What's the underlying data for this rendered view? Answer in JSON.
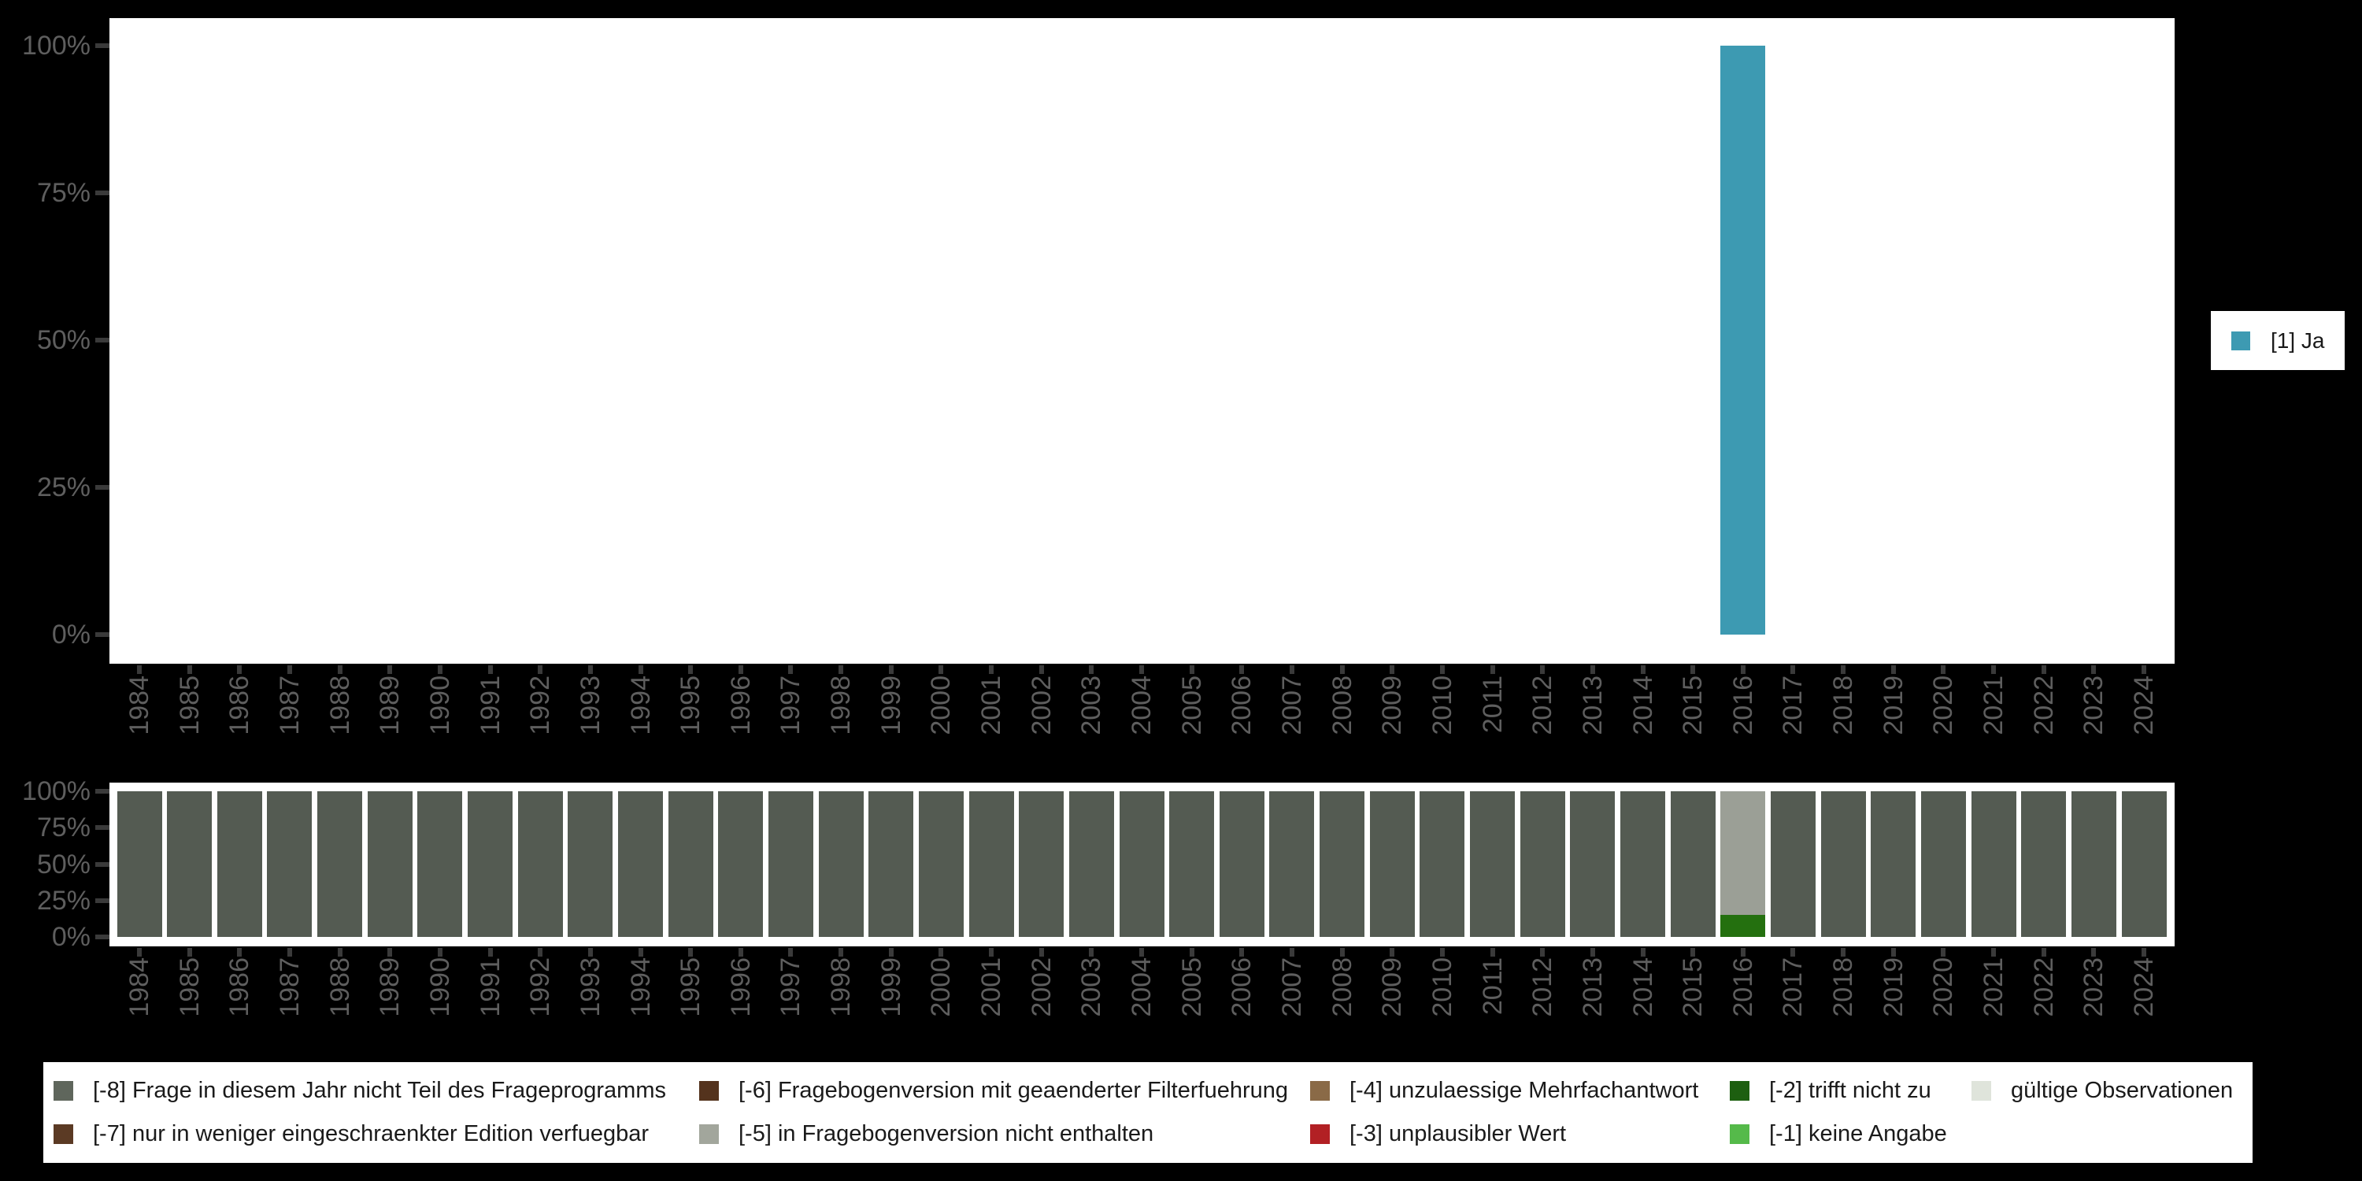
{
  "colors": {
    "background": "#000000",
    "plot_background": "#ffffff",
    "axis_label": "#5e5e5e",
    "tick_mark": "#3a3a3a",
    "legend_text": "#1a1a1a"
  },
  "top_legend": {
    "label": "[1] Ja",
    "color": "#3d9ab2"
  },
  "missing_legend": {
    "items": [
      {
        "code": "-8",
        "label": "[-8] Frage in diesem Jahr nicht Teil des Frageprogramms",
        "color": "#5f665c",
        "row": 1,
        "col": 1
      },
      {
        "code": "-7",
        "label": "[-7] nur in weniger eingeschraenkter Edition verfuegbar",
        "color": "#5b3a24",
        "row": 2,
        "col": 1
      },
      {
        "code": "-6",
        "label": "[-6] Fragebogenversion mit geaenderter Filterfuehrung",
        "color": "#54331d",
        "row": 1,
        "col": 2
      },
      {
        "code": "-5",
        "label": "[-5] in Fragebogenversion nicht enthalten",
        "color": "#a2a69c",
        "row": 2,
        "col": 2
      },
      {
        "code": "-4",
        "label": "[-4] unzulaessige Mehrfachantwort",
        "color": "#8a6a47",
        "row": 1,
        "col": 3
      },
      {
        "code": "-3",
        "label": "[-3] unplausibler Wert",
        "color": "#b22024",
        "row": 2,
        "col": 3
      },
      {
        "code": "-2",
        "label": "[-2] trifft nicht zu",
        "color": "#1d5f10",
        "row": 1,
        "col": 4
      },
      {
        "code": "-1",
        "label": "[-1] keine Angabe",
        "color": "#55ba4a",
        "row": 2,
        "col": 4
      },
      {
        "code": "valid",
        "label": "gültige Observationen",
        "color": "#dfe4db",
        "row": 1,
        "col": 5
      }
    ]
  },
  "chart_data": [
    {
      "type": "bar",
      "stacked": true,
      "unit": "percent",
      "title": "",
      "xlabel": "",
      "ylabel": "",
      "ylim": [
        0,
        100
      ],
      "yticks": [
        "0%",
        "25%",
        "50%",
        "75%",
        "100%"
      ],
      "grid": false,
      "legend_position": "right",
      "categories": [
        "1984",
        "1985",
        "1986",
        "1987",
        "1988",
        "1989",
        "1990",
        "1991",
        "1992",
        "1993",
        "1994",
        "1995",
        "1996",
        "1997",
        "1998",
        "1999",
        "2000",
        "2001",
        "2002",
        "2003",
        "2004",
        "2005",
        "2006",
        "2007",
        "2008",
        "2009",
        "2010",
        "2011",
        "2012",
        "2013",
        "2014",
        "2015",
        "2016",
        "2017",
        "2018",
        "2019",
        "2020",
        "2021",
        "2022",
        "2023",
        "2024"
      ],
      "series": [
        {
          "name": "[1] Ja",
          "color": "#3d9ab2",
          "values": [
            0,
            0,
            0,
            0,
            0,
            0,
            0,
            0,
            0,
            0,
            0,
            0,
            0,
            0,
            0,
            0,
            0,
            0,
            0,
            0,
            0,
            0,
            0,
            0,
            0,
            0,
            0,
            0,
            0,
            0,
            0,
            0,
            100,
            0,
            0,
            0,
            0,
            0,
            0,
            0,
            0
          ]
        }
      ]
    },
    {
      "type": "bar",
      "stacked": true,
      "unit": "percent",
      "title": "",
      "xlabel": "",
      "ylabel": "",
      "ylim": [
        0,
        100
      ],
      "yticks": [
        "0%",
        "25%",
        "50%",
        "75%",
        "100%"
      ],
      "grid": false,
      "legend_position": "bottom",
      "categories": [
        "1984",
        "1985",
        "1986",
        "1987",
        "1988",
        "1989",
        "1990",
        "1991",
        "1992",
        "1993",
        "1994",
        "1995",
        "1996",
        "1997",
        "1998",
        "1999",
        "2000",
        "2001",
        "2002",
        "2003",
        "2004",
        "2005",
        "2006",
        "2007",
        "2008",
        "2009",
        "2010",
        "2011",
        "2012",
        "2013",
        "2014",
        "2015",
        "2016",
        "2017",
        "2018",
        "2019",
        "2020",
        "2021",
        "2022",
        "2023",
        "2024"
      ],
      "series": [
        {
          "name": "[-8] Frage in diesem Jahr nicht Teil des Frageprogramms",
          "color": "#545b52",
          "values": [
            100,
            100,
            100,
            100,
            100,
            100,
            100,
            100,
            100,
            100,
            100,
            100,
            100,
            100,
            100,
            100,
            100,
            100,
            100,
            100,
            100,
            100,
            100,
            100,
            100,
            100,
            100,
            100,
            100,
            100,
            100,
            100,
            0,
            100,
            100,
            100,
            100,
            100,
            100,
            100,
            100
          ]
        },
        {
          "name": "[-5] in Fragebogenversion nicht enthalten",
          "color": "#9b9f96",
          "values": [
            0,
            0,
            0,
            0,
            0,
            0,
            0,
            0,
            0,
            0,
            0,
            0,
            0,
            0,
            0,
            0,
            0,
            0,
            0,
            0,
            0,
            0,
            0,
            0,
            0,
            0,
            0,
            0,
            0,
            0,
            0,
            0,
            85,
            0,
            0,
            0,
            0,
            0,
            0,
            0,
            0
          ]
        },
        {
          "name": "[-2] trifft nicht zu",
          "color": "#24700f",
          "values": [
            0,
            0,
            0,
            0,
            0,
            0,
            0,
            0,
            0,
            0,
            0,
            0,
            0,
            0,
            0,
            0,
            0,
            0,
            0,
            0,
            0,
            0,
            0,
            0,
            0,
            0,
            0,
            0,
            0,
            0,
            0,
            0,
            15,
            0,
            0,
            0,
            0,
            0,
            0,
            0,
            0
          ]
        }
      ]
    }
  ]
}
